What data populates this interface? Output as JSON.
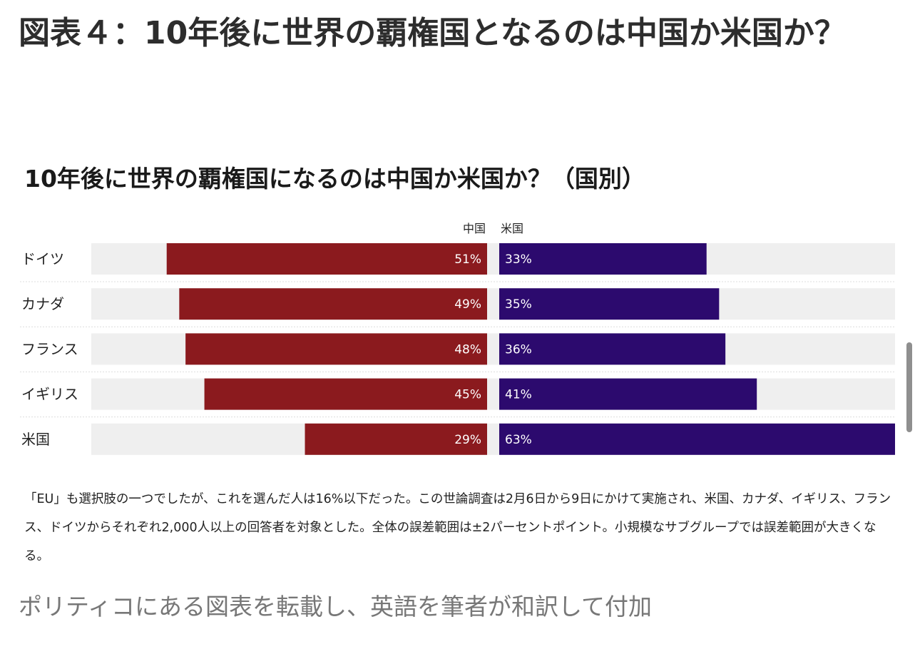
{
  "page": {
    "heading": "図表４：10年後に世界の覇権国となるのは中国か米国か？",
    "note": "「EU」も選択肢の一つでしたが、これを選んだ人は16%以下だった。この世論調査は2月6日から9日にかけて実施され、米国、カナダ、イギリス、フランス、ドイツからそれぞれ2,000人以上の回答者を対象とした。全体の誤差範囲は±2パーセントポイント。小規模なサブグループでは誤差範囲が大きくなる。",
    "caption": "ポリティコにある図表を転載し、英語を筆者が和訳して付加"
  },
  "chart_data": {
    "type": "bar",
    "title": "10年後に世界の覇権国になるのは中国か米国か？（国別）",
    "categories": [
      "ドイツ",
      "カナダ",
      "フランス",
      "イギリス",
      "米国"
    ],
    "series": [
      {
        "name": "中国",
        "values": [
          51,
          49,
          48,
          45,
          29
        ],
        "labels": [
          "51%",
          "49%",
          "48%",
          "45%",
          "29%"
        ],
        "color": "#8b1a1e"
      },
      {
        "name": "米国",
        "values": [
          33,
          35,
          36,
          41,
          63
        ],
        "labels": [
          "33%",
          "35%",
          "36%",
          "41%",
          "63%"
        ],
        "color": "#2c0a6e"
      }
    ],
    "xlim": [
      0,
      63
    ],
    "track_color": "#efefef",
    "divider_color": "#dddddd",
    "legend": "top-center"
  }
}
